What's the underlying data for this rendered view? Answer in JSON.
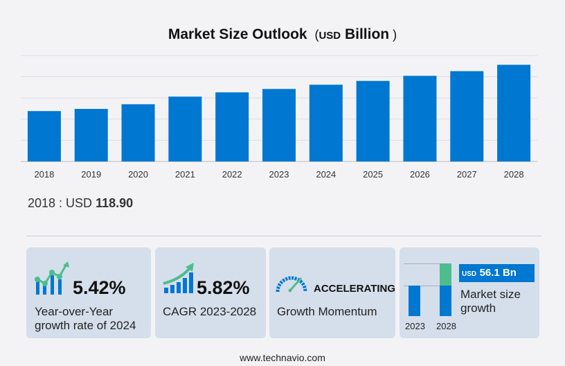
{
  "header": {
    "title": "Market Size Outlook",
    "unit": "USD",
    "unit_suffix": "Billion"
  },
  "chart_data": {
    "type": "bar",
    "title": "Market Size Outlook ( USD Billion )",
    "categories": [
      "2018",
      "2019",
      "2020",
      "2021",
      "2022",
      "2023",
      "2024",
      "2025",
      "2026",
      "2027",
      "2028"
    ],
    "values": [
      118.9,
      124,
      135,
      153,
      163,
      171,
      181,
      190,
      202,
      213,
      228
    ],
    "ylim": [
      0,
      250
    ],
    "grid": true,
    "bar_color": "#0077d0"
  },
  "base_value": {
    "label": "2018 : USD",
    "value": "118.90"
  },
  "cards": {
    "yoy": {
      "value": "5.42%",
      "label1": "Year-over-Year",
      "label2": "growth rate of 2024"
    },
    "cagr": {
      "value": "5.82%",
      "label": "CAGR  2023-2028"
    },
    "momentum": {
      "value": "ACCELERATING",
      "label": "Growth Momentum"
    },
    "growth": {
      "unit": "USD",
      "value": "56.1 Bn",
      "label1": "Market size",
      "label2": "growth",
      "year1": "2023",
      "year2": "2028",
      "colors": {
        "base": "#0077d0",
        "increase": "#4dbd8e"
      }
    }
  },
  "footer": {
    "site": "www.technavio.com"
  }
}
